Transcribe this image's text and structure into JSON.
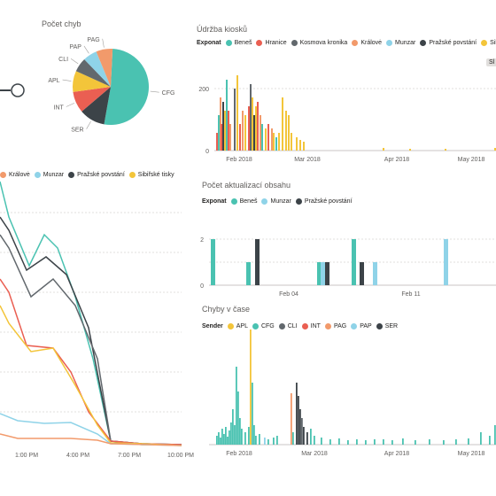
{
  "pie": {
    "title": "Počet chyb",
    "slices": [
      {
        "label": "CFG",
        "value": 52,
        "color": "#4ac2b1"
      },
      {
        "label": "SER",
        "value": 11,
        "color": "#3c4348"
      },
      {
        "label": "INT",
        "value": 9,
        "color": "#ea5f52"
      },
      {
        "label": "APL",
        "value": 9,
        "color": "#f3c53a"
      },
      {
        "label": "CLI",
        "value": 6,
        "color": "#62686d"
      },
      {
        "label": "PAP",
        "value": 6,
        "color": "#8fd3e8"
      },
      {
        "label": "PAG",
        "value": 7,
        "color": "#f29a6b"
      }
    ]
  },
  "kiosk": {
    "title": "Údržba kiosků",
    "legend_header": "Exponat",
    "legend": [
      {
        "label": "Beneš",
        "color": "#4ac2b1"
      },
      {
        "label": "Hranice",
        "color": "#ea5f52"
      },
      {
        "label": "Kosmova kronika",
        "color": "#62686d"
      },
      {
        "label": "Královė",
        "color": "#f29a6b"
      },
      {
        "label": "Munzar",
        "color": "#8fd3e8"
      },
      {
        "label": "Pražské povstání",
        "color": "#3c4348"
      },
      {
        "label": "Sibi",
        "color": "#f3c53a"
      }
    ],
    "button": "Sl",
    "y_ticks": [
      "200",
      "0"
    ],
    "x_ticks": [
      "Feb 2018",
      "Mar 2018",
      "Apr 2018",
      "May 2018"
    ]
  },
  "line": {
    "legend": [
      {
        "label": "Královė",
        "color": "#f29a6b"
      },
      {
        "label": "Munzar",
        "color": "#8fd3e8"
      },
      {
        "label": "Pražské povstání",
        "color": "#3c4348"
      },
      {
        "label": "Sibiřské tisky",
        "color": "#f3c53a"
      }
    ],
    "x_ticks": [
      "1:00 PM",
      "4:00 PM",
      "7:00 PM",
      "10:00 PM"
    ]
  },
  "updates": {
    "title": "Počet aktualizací obsahu",
    "legend_header": "Exponat",
    "legend": [
      {
        "label": "Beneš",
        "color": "#4ac2b1"
      },
      {
        "label": "Munzar",
        "color": "#8fd3e8"
      },
      {
        "label": "Pražské povstání",
        "color": "#3c4348"
      }
    ],
    "y_ticks": [
      "2",
      "0"
    ],
    "x_ticks": [
      "Feb 04",
      "Feb 11"
    ]
  },
  "errors_time": {
    "title": "Chyby v čase",
    "legend_header": "Sender",
    "legend": [
      {
        "label": "APL",
        "color": "#f3c53a"
      },
      {
        "label": "CFG",
        "color": "#4ac2b1"
      },
      {
        "label": "CLI",
        "color": "#62686d"
      },
      {
        "label": "INT",
        "color": "#ea5f52"
      },
      {
        "label": "PAG",
        "color": "#f29a6b"
      },
      {
        "label": "PAP",
        "color": "#8fd3e8"
      },
      {
        "label": "SER",
        "color": "#3c4348"
      }
    ],
    "x_ticks": [
      "Feb 2018",
      "Mar 2018",
      "Apr 2018",
      "May 2018"
    ]
  }
}
